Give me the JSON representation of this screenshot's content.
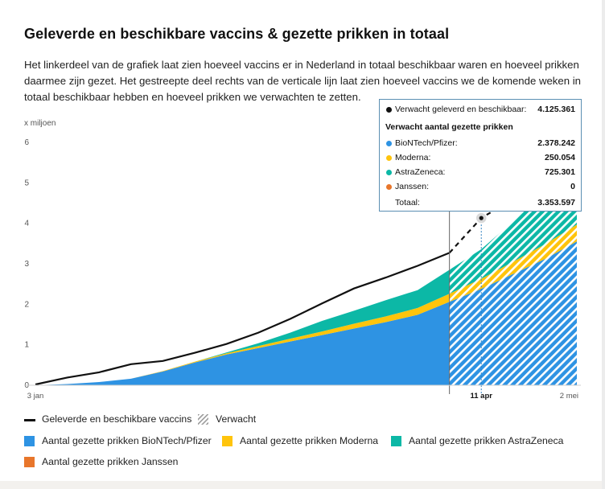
{
  "title": "Geleverde en beschikbare vaccins & gezette prikken in totaal",
  "description": "Het linkerdeel van de grafiek laat zien hoeveel vaccins er in Nederland in totaal beschikbaar waren en hoeveel prikken daarmee zijn gezet. Het gestreepte deel rechts van de verticale lijn laat zien hoeveel vaccins we de komende weken in totaal beschikbaar hebben en hoeveel prikken we verwachten te zetten.",
  "unit": "x miljoen",
  "tooltip": {
    "delivered_label": "Verwacht geleverd en beschikbaar:",
    "delivered_value": "4.125.361",
    "heading": "Verwacht aantal gezette prikken",
    "rows": [
      {
        "label": "BioNTech/Pfizer:",
        "value": "2.378.242",
        "color": "#2e93e3"
      },
      {
        "label": "Moderna:",
        "value": "250.054",
        "color": "#ffc40c"
      },
      {
        "label": "AstraZeneca:",
        "value": "725.301",
        "color": "#0cb8a6"
      },
      {
        "label": "Janssen:",
        "value": "0",
        "color": "#e8762b"
      }
    ],
    "total_label": "Totaal:",
    "total_value": "3.353.597"
  },
  "legend": {
    "delivered": "Geleverde en beschikbare vaccins",
    "expected": "Verwacht",
    "pfizer": "Aantal gezette prikken BioNTech/Pfizer",
    "moderna": "Aantal gezette prikken Moderna",
    "astrazeneca": "Aantal gezette prikken AstraZeneca",
    "janssen": "Aantal gezette prikken Janssen"
  },
  "colors": {
    "pfizer": "#2e93e3",
    "moderna": "#ffc40c",
    "astrazeneca": "#0cb8a6",
    "janssen": "#e8762b",
    "delivered": "#111111"
  },
  "chart_data": {
    "type": "area",
    "x_dates": [
      "2021-01-03",
      "2021-01-10",
      "2021-01-17",
      "2021-01-24",
      "2021-01-31",
      "2021-02-07",
      "2021-02-14",
      "2021-02-21",
      "2021-02-28",
      "2021-03-07",
      "2021-03-14",
      "2021-03-21",
      "2021-03-28",
      "2021-04-04",
      "2021-04-11",
      "2021-04-18",
      "2021-04-25",
      "2021-05-02"
    ],
    "x_tick_labels": [
      {
        "date": "2021-01-03",
        "label": "3 jan",
        "bold": false
      },
      {
        "date": "2021-04-11",
        "label": "11 apr",
        "bold": true
      },
      {
        "date": "2021-05-02",
        "label": "2 mei",
        "bold": false
      }
    ],
    "forecast_start": "2021-04-04",
    "ylim": [
      0,
      6
    ],
    "y_ticks": [
      0,
      1,
      2,
      3,
      4,
      5,
      6
    ],
    "series": [
      {
        "name": "Geleverde en beschikbare vaccins",
        "type": "line",
        "values": [
          0.02,
          0.19,
          0.32,
          0.52,
          0.6,
          0.8,
          1.02,
          1.3,
          1.64,
          2.02,
          2.39,
          2.66,
          2.95,
          3.27,
          4.13,
          4.6,
          5.1,
          5.6
        ]
      },
      {
        "name": "Aantal gezette prikken BioNTech/Pfizer",
        "type": "stacked-area",
        "values": [
          0.0,
          0.03,
          0.08,
          0.16,
          0.34,
          0.56,
          0.76,
          0.92,
          1.08,
          1.24,
          1.4,
          1.56,
          1.74,
          2.06,
          2.38,
          2.75,
          3.12,
          3.55
        ]
      },
      {
        "name": "Aantal gezette prikken Moderna",
        "type": "stacked-area",
        "values": [
          0.0,
          0.0,
          0.0,
          0.0,
          0.01,
          0.02,
          0.03,
          0.05,
          0.07,
          0.09,
          0.12,
          0.14,
          0.17,
          0.2,
          0.25,
          0.3,
          0.36,
          0.42
        ]
      },
      {
        "name": "Aantal gezette prikken AstraZeneca",
        "type": "stacked-area",
        "values": [
          0.0,
          0.0,
          0.0,
          0.0,
          0.0,
          0.0,
          0.02,
          0.07,
          0.15,
          0.26,
          0.32,
          0.4,
          0.44,
          0.59,
          0.73,
          1.0,
          1.3,
          1.7
        ]
      },
      {
        "name": "Aantal gezette prikken Janssen",
        "type": "stacked-area",
        "values": [
          0,
          0,
          0,
          0,
          0,
          0,
          0,
          0,
          0,
          0,
          0,
          0,
          0,
          0,
          0,
          0,
          0,
          0
        ]
      }
    ],
    "highlight_date": "2021-04-11",
    "grid": false,
    "legend_position": "bottom"
  }
}
